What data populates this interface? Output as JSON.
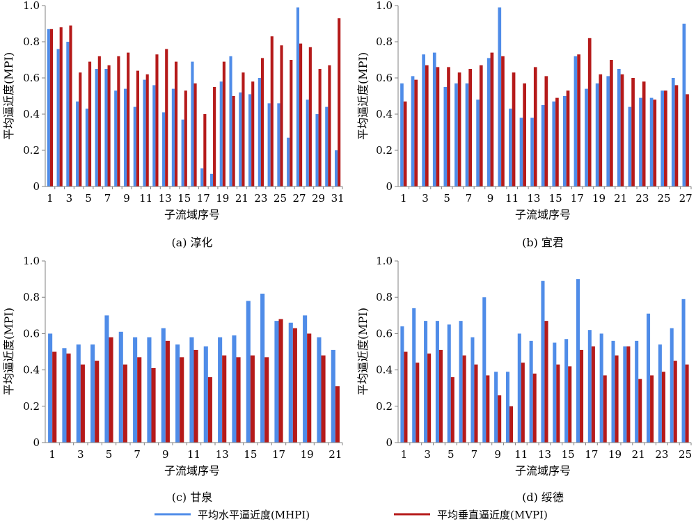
{
  "legend": {
    "mhpi_label": "平均水平逼近度(MHPI)",
    "mvpi_label": "平均垂直逼近度(MVPI)"
  },
  "colors": {
    "mhpi": "#4f8ce8",
    "mvpi": "#b51a1a",
    "axis": "#808080"
  },
  "chart_data": [
    {
      "type": "bar",
      "caption": "(a) 淳化",
      "xlabel": "子流域序号",
      "ylabel": "平均逼近度(MPI)",
      "ylim": [
        0,
        1.0
      ],
      "yticks": [
        "0",
        "0.2",
        "0.4",
        "0.6",
        "0.8",
        "1.0"
      ],
      "xtick_step": 2,
      "categories": [
        1,
        2,
        3,
        4,
        5,
        6,
        7,
        8,
        9,
        10,
        11,
        12,
        13,
        14,
        15,
        16,
        17,
        18,
        19,
        20,
        21,
        22,
        23,
        24,
        25,
        26,
        27,
        28,
        29,
        30,
        31
      ],
      "series": [
        {
          "name": "平均水平逼近度(MHPI)",
          "values": [
            0.87,
            0.76,
            0.8,
            0.47,
            0.43,
            0.65,
            0.65,
            0.53,
            0.54,
            0.44,
            0.59,
            0.56,
            0.41,
            0.54,
            0.37,
            0.69,
            0.1,
            0.07,
            0.58,
            0.72,
            0.52,
            0.51,
            0.6,
            0.46,
            0.46,
            0.27,
            0.99,
            0.48,
            0.4,
            0.44,
            0.2
          ]
        },
        {
          "name": "平均垂直逼近度(MVPI)",
          "values": [
            0.87,
            0.88,
            0.89,
            0.63,
            0.69,
            0.72,
            0.67,
            0.72,
            0.74,
            0.64,
            0.62,
            0.73,
            0.76,
            0.69,
            0.53,
            0.57,
            0.4,
            0.55,
            0.69,
            0.5,
            0.63,
            0.58,
            0.71,
            0.83,
            0.78,
            0.7,
            0.79,
            0.77,
            0.65,
            0.67,
            0.93
          ]
        }
      ]
    },
    {
      "type": "bar",
      "caption": "(b) 宜君",
      "xlabel": "子流域序号",
      "ylabel": "平均逼近度(MPI)",
      "ylim": [
        0,
        1.0
      ],
      "yticks": [
        "0",
        "0.2",
        "0.4",
        "0.6",
        "0.8",
        "1.0"
      ],
      "xtick_step": 2,
      "categories": [
        1,
        2,
        3,
        4,
        5,
        6,
        7,
        8,
        9,
        10,
        11,
        12,
        13,
        14,
        15,
        16,
        17,
        18,
        19,
        20,
        21,
        22,
        23,
        24,
        25,
        26,
        27
      ],
      "series": [
        {
          "name": "平均水平逼近度(MHPI)",
          "values": [
            0.57,
            0.61,
            0.73,
            0.74,
            0.55,
            0.57,
            0.57,
            0.48,
            0.71,
            0.99,
            0.43,
            0.38,
            0.38,
            0.45,
            0.47,
            0.5,
            0.72,
            0.54,
            0.57,
            0.61,
            0.65,
            0.44,
            0.49,
            0.49,
            0.53,
            0.6,
            0.9
          ]
        },
        {
          "name": "平均垂直逼近度(MVPI)",
          "values": [
            0.47,
            0.59,
            0.67,
            0.66,
            0.66,
            0.63,
            0.65,
            0.67,
            0.74,
            0.72,
            0.63,
            0.57,
            0.66,
            0.61,
            0.49,
            0.53,
            0.73,
            0.82,
            0.62,
            0.7,
            0.62,
            0.6,
            0.58,
            0.48,
            0.53,
            0.56,
            0.51
          ]
        }
      ]
    },
    {
      "type": "bar",
      "caption": "(c) 甘泉",
      "xlabel": "子流域序号",
      "ylabel": "平均逼近度(MPI)",
      "ylim": [
        0,
        1.0
      ],
      "yticks": [
        "0",
        "0.2",
        "0.4",
        "0.6",
        "0.8",
        "1.0"
      ],
      "xtick_step": 2,
      "categories": [
        1,
        2,
        3,
        4,
        5,
        6,
        7,
        8,
        9,
        10,
        11,
        12,
        13,
        14,
        15,
        16,
        17,
        18,
        19,
        20,
        21
      ],
      "series": [
        {
          "name": "平均水平逼近度(MHPI)",
          "values": [
            0.6,
            0.52,
            0.54,
            0.54,
            0.7,
            0.61,
            0.58,
            0.58,
            0.63,
            0.54,
            0.58,
            0.53,
            0.58,
            0.59,
            0.78,
            0.82,
            0.67,
            0.66,
            0.7,
            0.58,
            0.51
          ]
        },
        {
          "name": "平均垂直逼近度(MVPI)",
          "values": [
            0.5,
            0.49,
            0.43,
            0.45,
            0.58,
            0.43,
            0.47,
            0.41,
            0.56,
            0.47,
            0.51,
            0.36,
            0.48,
            0.47,
            0.48,
            0.47,
            0.68,
            0.63,
            0.6,
            0.48,
            0.31
          ]
        }
      ]
    },
    {
      "type": "bar",
      "caption": "(d) 绥德",
      "xlabel": "子流域序号",
      "ylabel": "平均逼近度(MPI)",
      "ylim": [
        0,
        1.0
      ],
      "yticks": [
        "0",
        "0.2",
        "0.4",
        "0.6",
        "0.8",
        "1.0"
      ],
      "xtick_step": 2,
      "categories": [
        1,
        2,
        3,
        4,
        5,
        6,
        7,
        8,
        9,
        10,
        11,
        12,
        13,
        14,
        15,
        16,
        17,
        18,
        19,
        20,
        21,
        22,
        23,
        24,
        25
      ],
      "series": [
        {
          "name": "平均水平逼近度(MHPI)",
          "values": [
            0.64,
            0.74,
            0.67,
            0.67,
            0.65,
            0.67,
            0.58,
            0.8,
            0.39,
            0.39,
            0.6,
            0.56,
            0.89,
            0.55,
            0.57,
            0.9,
            0.62,
            0.6,
            0.56,
            0.53,
            0.56,
            0.71,
            0.54,
            0.63,
            0.79
          ]
        },
        {
          "name": "平均垂直逼近度(MVPI)",
          "values": [
            0.5,
            0.44,
            0.49,
            0.51,
            0.36,
            0.48,
            0.43,
            0.37,
            0.26,
            0.2,
            0.44,
            0.38,
            0.67,
            0.43,
            0.42,
            0.51,
            0.53,
            0.37,
            0.48,
            0.53,
            0.35,
            0.37,
            0.39,
            0.45,
            0.43
          ]
        }
      ]
    }
  ]
}
